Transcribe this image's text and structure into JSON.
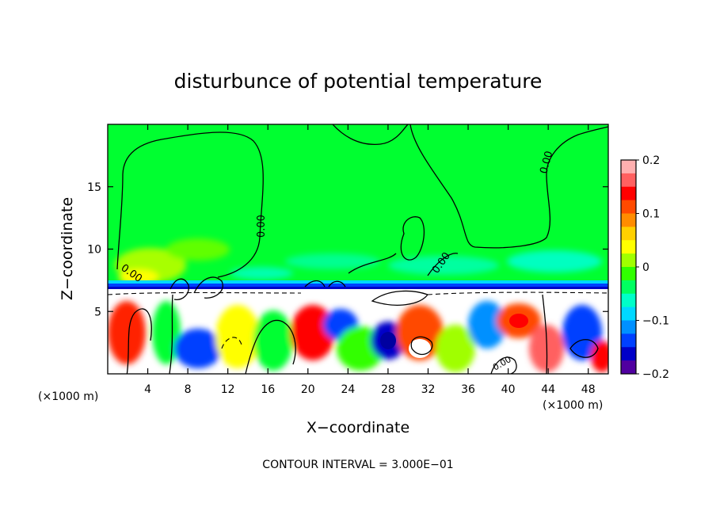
{
  "chart_data": {
    "type": "heatmap",
    "title": "disturbunce of potential temperature",
    "xlabel": "X−coordinate",
    "ylabel": "Z−coordinate",
    "x_unit_left": "(×1000 m)",
    "x_unit_right": "(×1000 m)",
    "xlim": [
      0,
      50
    ],
    "ylim": [
      0,
      20
    ],
    "x_ticks": [
      4,
      8,
      12,
      16,
      20,
      24,
      28,
      32,
      36,
      40,
      44,
      48
    ],
    "y_ticks": [
      5,
      10,
      15
    ],
    "footer": "CONTOUR INTERVAL = 3.000E−01",
    "contour_labels": [
      "0.00",
      "0.00",
      "0.00",
      "0.00",
      "0.00"
    ],
    "colorbar": {
      "range": [
        -0.2,
        0.2
      ],
      "tick_values": [
        0.2,
        0.1,
        0,
        -0.1,
        -0.2
      ],
      "tick_labels": [
        "0.2",
        "0.1",
        "0",
        "−0.1",
        "−0.2"
      ],
      "colors": [
        "#ffb0b0",
        "#ff6060",
        "#ff0000",
        "#ff4a00",
        "#ff8c00",
        "#ffd000",
        "#ffff00",
        "#a0ff00",
        "#30ff00",
        "#00ff60",
        "#00ffc8",
        "#00d8ff",
        "#0090ff",
        "#0040ff",
        "#0000c8",
        "#5000a0"
      ]
    },
    "background_color": "#00ff30"
  }
}
